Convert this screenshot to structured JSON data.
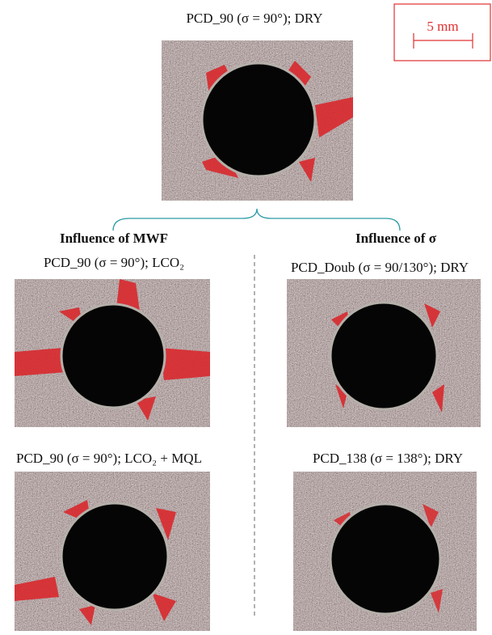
{
  "figure": {
    "top": {
      "label": "PCD_90 (σ = 90°); DRY"
    },
    "scale_bar": {
      "label": "5 mm"
    },
    "left": {
      "heading": "Influence of MWF",
      "panels": [
        {
          "label": "PCD_90 (σ = 90°); LCO₂"
        },
        {
          "label": "PCD_90 (σ = 90°); LCO₂ + MQL"
        }
      ]
    },
    "right": {
      "heading": "Influence of σ",
      "panels": [
        {
          "label": "PCD_Doub (σ = 90/130°); DRY"
        },
        {
          "label": "PCD_138 (σ = 138°); DRY"
        }
      ]
    }
  }
}
